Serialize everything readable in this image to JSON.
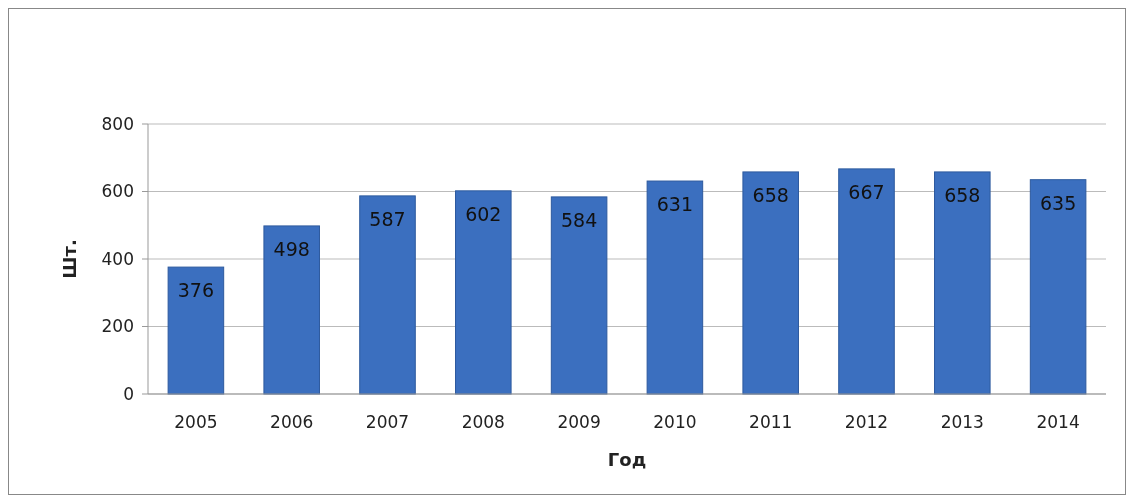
{
  "chart_data": {
    "type": "bar",
    "xlabel": "Год",
    "ylabel": "Шт.",
    "categories": [
      "2005",
      "2006",
      "2007",
      "2008",
      "2009",
      "2010",
      "2011",
      "2012",
      "2013",
      "2014"
    ],
    "values": [
      376,
      498,
      587,
      602,
      584,
      631,
      658,
      667,
      658,
      635
    ],
    "color": "#3b6fbf",
    "ylim": [
      0,
      800
    ],
    "yticks": [
      0,
      200,
      400,
      600,
      800
    ],
    "grid": "y",
    "data_labels": true
  }
}
